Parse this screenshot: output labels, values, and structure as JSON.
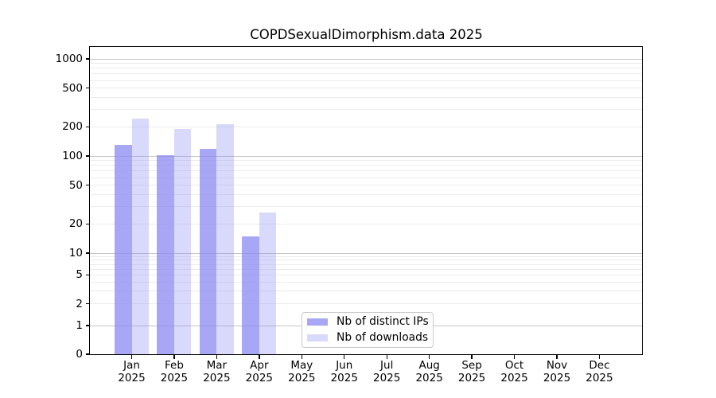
{
  "figure": {
    "background": "#ffffff",
    "text_color": "#000000",
    "grid_major_color": "#c6c6c6",
    "grid_minor_color": "#ececec"
  },
  "chart_data": {
    "type": "bar",
    "title": "COPDSexualDimorphism.data 2025",
    "year": "2025",
    "months": [
      "Jan",
      "Feb",
      "Mar",
      "Apr",
      "May",
      "Jun",
      "Jul",
      "Aug",
      "Sep",
      "Oct",
      "Nov",
      "Dec"
    ],
    "series": [
      {
        "name": "Nb of distinct IPs",
        "color": "rgba(133,133,242,0.72)",
        "values": [
          131,
          102,
          119,
          15,
          0,
          0,
          0,
          0,
          0,
          0,
          0,
          0
        ]
      },
      {
        "name": "Nb of downloads",
        "color": "rgba(133,133,242,0.31)",
        "values": [
          242,
          191,
          214,
          26,
          0,
          0,
          0,
          0,
          0,
          0,
          0,
          0
        ]
      }
    ],
    "xlabel": "",
    "ylabel": "",
    "y_axis": {
      "scale": "log-like (linear 0-1, log above)",
      "tick_values": [
        0,
        1,
        2,
        5,
        10,
        20,
        50,
        100,
        200,
        500,
        1000
      ],
      "ylim": [
        0,
        1000
      ],
      "minor_grid_values": [
        2,
        3,
        4,
        5,
        6,
        7,
        8,
        9,
        20,
        30,
        40,
        50,
        60,
        70,
        80,
        90,
        200,
        300,
        400,
        500,
        600,
        700,
        800,
        900
      ],
      "major_grid_values": [
        1,
        10,
        100,
        1000
      ]
    },
    "grid": "horizontal major+minor",
    "legend_position": "inside bottom-center"
  }
}
